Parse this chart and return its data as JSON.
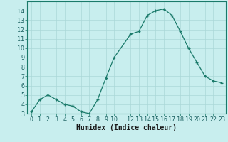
{
  "x": [
    0,
    1,
    2,
    3,
    4,
    5,
    6,
    7,
    8,
    9,
    10,
    12,
    13,
    14,
    15,
    16,
    17,
    18,
    19,
    20,
    21,
    22,
    23
  ],
  "y": [
    3.2,
    4.5,
    5.0,
    4.5,
    4.0,
    3.8,
    3.2,
    3.0,
    4.5,
    6.8,
    9.0,
    11.5,
    11.8,
    13.5,
    14.0,
    14.2,
    13.5,
    11.8,
    10.0,
    8.5,
    7.0,
    6.5,
    6.3
  ],
  "xlabel": "Humidex (Indice chaleur)",
  "ylim": [
    3,
    15
  ],
  "xlim": [
    -0.5,
    23.5
  ],
  "line_color": "#1a7a6a",
  "bg_color": "#c8eeee",
  "grid_color": "#aad8d8",
  "tick_label_color": "#1a6060",
  "xlabel_color": "#1a1a1a",
  "x_ticks": [
    0,
    1,
    2,
    3,
    4,
    5,
    6,
    7,
    8,
    9,
    10,
    12,
    13,
    14,
    15,
    16,
    17,
    18,
    19,
    20,
    21,
    22,
    23
  ],
  "y_ticks": [
    3,
    4,
    5,
    6,
    7,
    8,
    9,
    10,
    11,
    12,
    13,
    14
  ],
  "tick_fontsize": 6,
  "xlabel_fontsize": 7
}
